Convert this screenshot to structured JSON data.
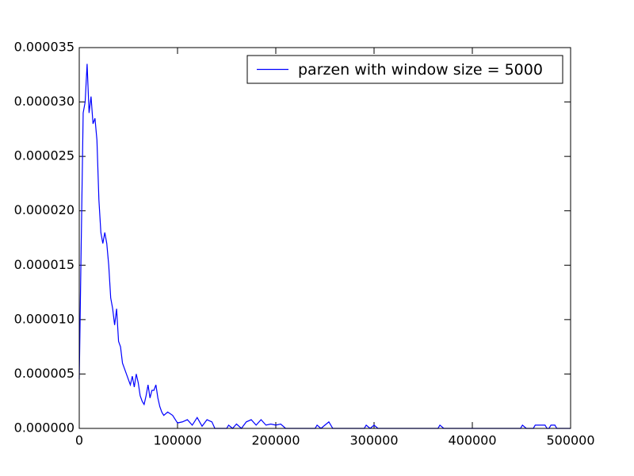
{
  "chart_data": {
    "type": "line",
    "xlim": [
      0,
      500000
    ],
    "ylim": [
      0,
      3.5e-05
    ],
    "xticks": [
      0,
      100000,
      200000,
      300000,
      400000,
      500000
    ],
    "yticks": [
      {
        "value": 0,
        "label": "0.000000"
      },
      {
        "value": 5e-06,
        "label": "0.000005"
      },
      {
        "value": 1e-05,
        "label": "0.000010"
      },
      {
        "value": 1.5e-05,
        "label": "0.000015"
      },
      {
        "value": 2e-05,
        "label": "0.000020"
      },
      {
        "value": 2.5e-05,
        "label": "0.000025"
      },
      {
        "value": 3e-05,
        "label": "0.000030"
      },
      {
        "value": 3.5e-05,
        "label": "0.000035"
      }
    ],
    "legend": "upper right",
    "x": [
      0,
      2000,
      4000,
      6000,
      8000,
      10000,
      12000,
      14000,
      16000,
      18000,
      20000,
      22000,
      24000,
      26000,
      28000,
      30000,
      32000,
      34000,
      36000,
      38000,
      40000,
      42000,
      44000,
      46000,
      48000,
      50000,
      52000,
      54000,
      56000,
      58000,
      60000,
      62000,
      64000,
      66000,
      68000,
      70000,
      72000,
      74000,
      76000,
      78000,
      80000,
      82000,
      84000,
      86000,
      90000,
      95000,
      100000,
      105000,
      110000,
      115000,
      120000,
      125000,
      130000,
      135000,
      138000,
      150000,
      152000,
      156000,
      160000,
      165000,
      170000,
      175000,
      180000,
      185000,
      190000,
      195000,
      200000,
      205000,
      210000,
      240000,
      242000,
      246000,
      250000,
      254000,
      258000,
      290000,
      292000,
      296000,
      300000,
      304000,
      365000,
      367000,
      371000,
      449000,
      451000,
      455000,
      462000,
      464000,
      474000,
      476000,
      478000,
      480000,
      484000,
      486000,
      500000
    ],
    "series": [
      {
        "name": "parzen with window size = 5000",
        "color": "#0000ff",
        "values": [
          4.5e-06,
          1.7e-05,
          2.9e-05,
          3e-05,
          3.35e-05,
          2.9e-05,
          3.05e-05,
          2.8e-05,
          2.85e-05,
          2.65e-05,
          2.1e-05,
          1.8e-05,
          1.7e-05,
          1.8e-05,
          1.7e-05,
          1.5e-05,
          1.2e-05,
          1.1e-05,
          9.5e-06,
          1.1e-05,
          8e-06,
          7.5e-06,
          6e-06,
          5.5e-06,
          5e-06,
          4.5e-06,
          4e-06,
          4.8e-06,
          3.8e-06,
          5e-06,
          4.2e-06,
          3e-06,
          2.5e-06,
          2.2e-06,
          3e-06,
          4e-06,
          2.8e-06,
          3.5e-06,
          3.5e-06,
          4e-06,
          2.8e-06,
          2e-06,
          1.5e-06,
          1.2e-06,
          1.5e-06,
          1.2e-06,
          5e-07,
          6e-07,
          8e-07,
          3e-07,
          1e-06,
          2e-07,
          8e-07,
          6e-07,
          0,
          0,
          3e-07,
          0,
          4e-07,
          0,
          6e-07,
          8e-07,
          3e-07,
          8e-07,
          3e-07,
          4e-07,
          3e-07,
          4e-07,
          0,
          0,
          3e-07,
          0,
          3e-07,
          6e-07,
          0,
          0,
          3e-07,
          0,
          3e-07,
          0,
          0,
          3e-07,
          0,
          0,
          3e-07,
          0,
          0,
          3e-07,
          3e-07,
          0,
          0,
          3e-07,
          3e-07,
          0,
          0
        ]
      }
    ]
  }
}
